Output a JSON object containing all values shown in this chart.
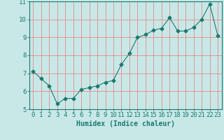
{
  "x": [
    0,
    1,
    2,
    3,
    4,
    5,
    6,
    7,
    8,
    9,
    10,
    11,
    12,
    13,
    14,
    15,
    16,
    17,
    18,
    19,
    20,
    21,
    22,
    23
  ],
  "y": [
    7.1,
    6.7,
    6.3,
    5.3,
    5.6,
    5.6,
    6.1,
    6.2,
    6.3,
    6.5,
    6.6,
    7.5,
    8.1,
    9.0,
    9.15,
    9.4,
    9.5,
    10.1,
    9.35,
    9.35,
    9.55,
    10.0,
    10.85,
    9.1
  ],
  "line_color": "#1a7a6e",
  "marker": "D",
  "marker_size": 2.5,
  "bg_color": "#c8e8e8",
  "grid_color": "#e88888",
  "xlabel": "Humidex (Indice chaleur)",
  "xlim": [
    -0.5,
    23.5
  ],
  "ylim": [
    5.0,
    11.0
  ],
  "yticks": [
    5,
    6,
    7,
    8,
    9,
    10,
    11
  ],
  "xticks": [
    0,
    1,
    2,
    3,
    4,
    5,
    6,
    7,
    8,
    9,
    10,
    11,
    12,
    13,
    14,
    15,
    16,
    17,
    18,
    19,
    20,
    21,
    22,
    23
  ],
  "xlabel_fontsize": 7,
  "tick_fontsize": 6.5
}
